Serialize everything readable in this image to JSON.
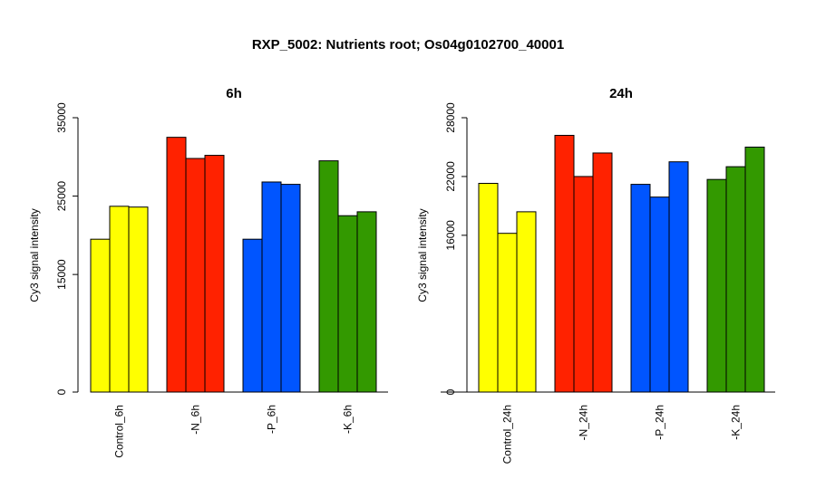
{
  "title": "RXP_5002: Nutrients root; Os04g0102700_40001",
  "colors": {
    "Control": "#ffff00",
    "N": "#ff2200",
    "P": "#0055ff",
    "K": "#339900"
  },
  "chart_data": [
    {
      "type": "bar",
      "title": "6h",
      "ylabel": "Cy3 signal intensity",
      "ylim": [
        0,
        35000
      ],
      "yticks": [
        0,
        15000,
        25000,
        35000
      ],
      "groups": [
        {
          "label": "Control_6h",
          "color_key": "Control",
          "values": [
            19500,
            23700,
            23600
          ]
        },
        {
          "label": "-N_6h",
          "color_key": "N",
          "values": [
            32500,
            29800,
            30200
          ]
        },
        {
          "label": "-P_6h",
          "color_key": "P",
          "values": [
            19500,
            26800,
            26500
          ]
        },
        {
          "label": "-K_6h",
          "color_key": "K",
          "values": [
            29500,
            22500,
            23000
          ]
        }
      ]
    },
    {
      "type": "bar",
      "title": "24h",
      "ylabel": "Cy3 signal intensity",
      "ylim": [
        0,
        28000
      ],
      "yticks": [
        0,
        16000,
        22000,
        28000
      ],
      "groups": [
        {
          "label": "Control_24h",
          "color_key": "Control",
          "values": [
            21300,
            16200,
            18400
          ]
        },
        {
          "label": "-N_24h",
          "color_key": "N",
          "values": [
            26200,
            22000,
            24400
          ]
        },
        {
          "label": "-P_24h",
          "color_key": "P",
          "values": [
            21200,
            19900,
            23500
          ]
        },
        {
          "label": "-K_24h",
          "color_key": "K",
          "values": [
            21700,
            23000,
            25000
          ]
        }
      ]
    }
  ]
}
